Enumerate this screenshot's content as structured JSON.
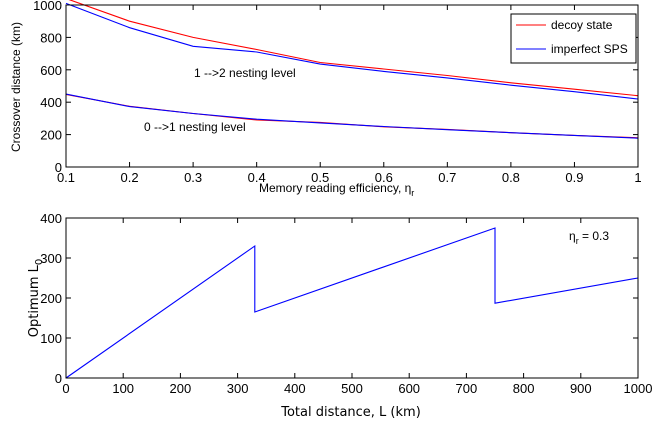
{
  "colors": {
    "decoy": "#ff0000",
    "sps": "#0000ff",
    "line2": "#0000ff"
  },
  "chart_data": [
    {
      "type": "line",
      "xlabel": "Memory reading efficiency, η",
      "xlabel_sub": "r",
      "ylabel": "Crossover distance (km)",
      "xlim": [
        0.1,
        1
      ],
      "ylim": [
        0,
        1000
      ],
      "xticks": [
        "0.1",
        "0.2",
        "0.3",
        "0.4",
        "0.5",
        "0.6",
        "0.7",
        "0.8",
        "0.9",
        "1"
      ],
      "yticks": [
        "0",
        "200",
        "400",
        "600",
        "800",
        "1000"
      ],
      "legend": {
        "position": "top-right",
        "entries": [
          "decoy state",
          "imperfect SPS"
        ]
      },
      "annotations": [
        "1 -->2 nesting level",
        "0 -->1 nesting level"
      ],
      "series": [
        {
          "name": "decoy state",
          "group": "1->2",
          "x": [
            0.1,
            0.2,
            0.3,
            0.4,
            0.5,
            0.6,
            0.7,
            0.8,
            0.9,
            1.0
          ],
          "values": [
            1040,
            900,
            800,
            725,
            645,
            605,
            565,
            520,
            480,
            440
          ]
        },
        {
          "name": "imperfect SPS",
          "group": "1->2",
          "x": [
            0.1,
            0.2,
            0.3,
            0.4,
            0.5,
            0.6,
            0.7,
            0.8,
            0.9,
            1.0
          ],
          "values": [
            1010,
            860,
            745,
            710,
            635,
            590,
            550,
            505,
            465,
            420
          ]
        },
        {
          "name": "decoy state",
          "group": "0->1",
          "x": [
            0.1,
            0.2,
            0.3,
            0.4,
            0.5,
            0.6,
            0.7,
            0.8,
            0.9,
            1.0
          ],
          "values": [
            448,
            375,
            330,
            290,
            275,
            248,
            232,
            212,
            195,
            180
          ]
        },
        {
          "name": "imperfect SPS",
          "group": "0->1",
          "x": [
            0.1,
            0.2,
            0.3,
            0.4,
            0.5,
            0.6,
            0.7,
            0.8,
            0.9,
            1.0
          ],
          "values": [
            450,
            373,
            330,
            295,
            272,
            250,
            230,
            212,
            195,
            178
          ]
        }
      ]
    },
    {
      "type": "line",
      "xlabel": "Total distance, L (km)",
      "ylabel": "Optimum L",
      "ylabel_sub": "0",
      "xlim": [
        0,
        1000
      ],
      "ylim": [
        0,
        400
      ],
      "xticks": [
        "0",
        "100",
        "200",
        "300",
        "400",
        "500",
        "600",
        "700",
        "800",
        "900",
        "1000"
      ],
      "yticks": [
        "0",
        "100",
        "200",
        "300",
        "400"
      ],
      "annotation": "η",
      "annotation_sub": "r",
      "annotation_value": " = 0.3",
      "series": [
        {
          "x": [
            0,
            330,
            330,
            750,
            750,
            1000
          ],
          "values": [
            0,
            330,
            165,
            375,
            187,
            250
          ]
        }
      ]
    }
  ]
}
